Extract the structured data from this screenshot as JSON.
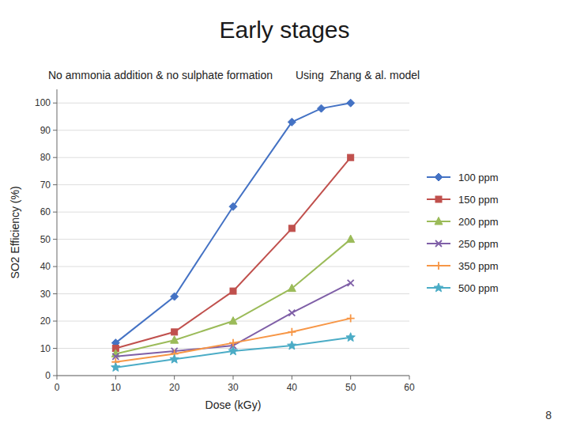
{
  "chart_data": {
    "type": "line",
    "title": "Early stages",
    "subtitle": [
      "No ammonia addition & no sulphate formation",
      "Using  Zhang & al. model"
    ],
    "annotations": [
      "8"
    ],
    "x_label": "Dose (kGy)",
    "y_label": "SO2 Efficiency (%)",
    "xlim": [
      0,
      60
    ],
    "ylim": [
      0,
      105
    ],
    "xticks": [
      0,
      10,
      20,
      30,
      40,
      50,
      60
    ],
    "yticks": [
      0,
      10,
      20,
      30,
      40,
      50,
      60,
      70,
      80,
      90,
      100
    ],
    "grid": "y",
    "legend": "right",
    "series": [
      {
        "name": "100 ppm",
        "color": "#4472C4",
        "marker": "diamond",
        "x": [
          10,
          20,
          30,
          40,
          45,
          50
        ],
        "values": [
          12,
          29,
          62,
          93,
          98,
          100
        ]
      },
      {
        "name": "150 ppm",
        "color": "#C0504D",
        "marker": "square",
        "x": [
          10,
          20,
          30,
          40,
          50
        ],
        "values": [
          10,
          16,
          31,
          54,
          80
        ]
      },
      {
        "name": "200 ppm",
        "color": "#9BBB59",
        "marker": "triangle",
        "x": [
          10,
          20,
          30,
          40,
          50
        ],
        "values": [
          8,
          13,
          20,
          32,
          50
        ]
      },
      {
        "name": "250 ppm",
        "color": "#7F5FA7",
        "marker": "x",
        "x": [
          10,
          20,
          30,
          40,
          50
        ],
        "values": [
          7,
          9,
          11,
          23,
          34
        ]
      },
      {
        "name": "350 ppm",
        "color": "#F79646",
        "marker": "plus",
        "x": [
          10,
          20,
          30,
          40,
          50
        ],
        "values": [
          5,
          8,
          12,
          16,
          21
        ]
      },
      {
        "name": "500 ppm",
        "color": "#4BACC6",
        "marker": "star",
        "x": [
          10,
          20,
          30,
          40,
          50
        ],
        "values": [
          3,
          6,
          9,
          11,
          14
        ]
      }
    ]
  }
}
